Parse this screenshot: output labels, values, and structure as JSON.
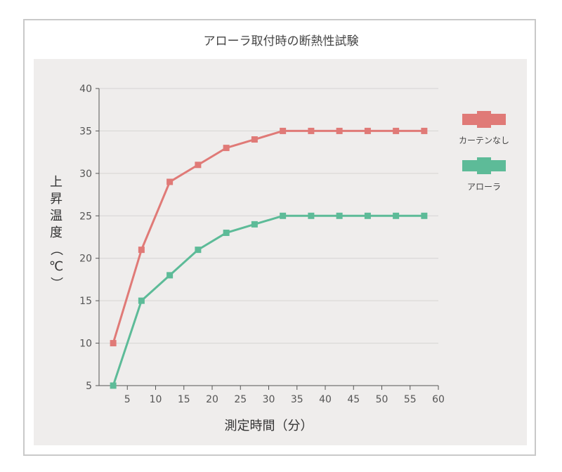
{
  "chart_data": {
    "type": "line",
    "title": "アローラ取付時の断熱性試験",
    "xlabel": "測定時間（分）",
    "ylabel": "上昇温度（℃）",
    "xlim": [
      0,
      60
    ],
    "ylim": [
      5,
      40
    ],
    "xticks": [
      5,
      10,
      15,
      20,
      25,
      30,
      35,
      40,
      45,
      50,
      55,
      60
    ],
    "yticks": [
      5,
      10,
      15,
      20,
      25,
      30,
      35,
      40
    ],
    "grid": true,
    "legend_position": "right",
    "x": [
      2.5,
      7.5,
      12.5,
      17.5,
      22.5,
      27.5,
      32.5,
      37.5,
      42.5,
      47.5,
      52.5,
      57.5
    ],
    "series": [
      {
        "name": "カーテンなし",
        "color": "#e07a77",
        "values": [
          10,
          21,
          29,
          31,
          33,
          34,
          35,
          35,
          35,
          35,
          35,
          35
        ]
      },
      {
        "name": "アローラ",
        "color": "#5dbb98",
        "values": [
          5,
          15,
          18,
          21,
          23,
          24,
          25,
          25,
          25,
          25,
          25,
          25
        ]
      }
    ]
  }
}
